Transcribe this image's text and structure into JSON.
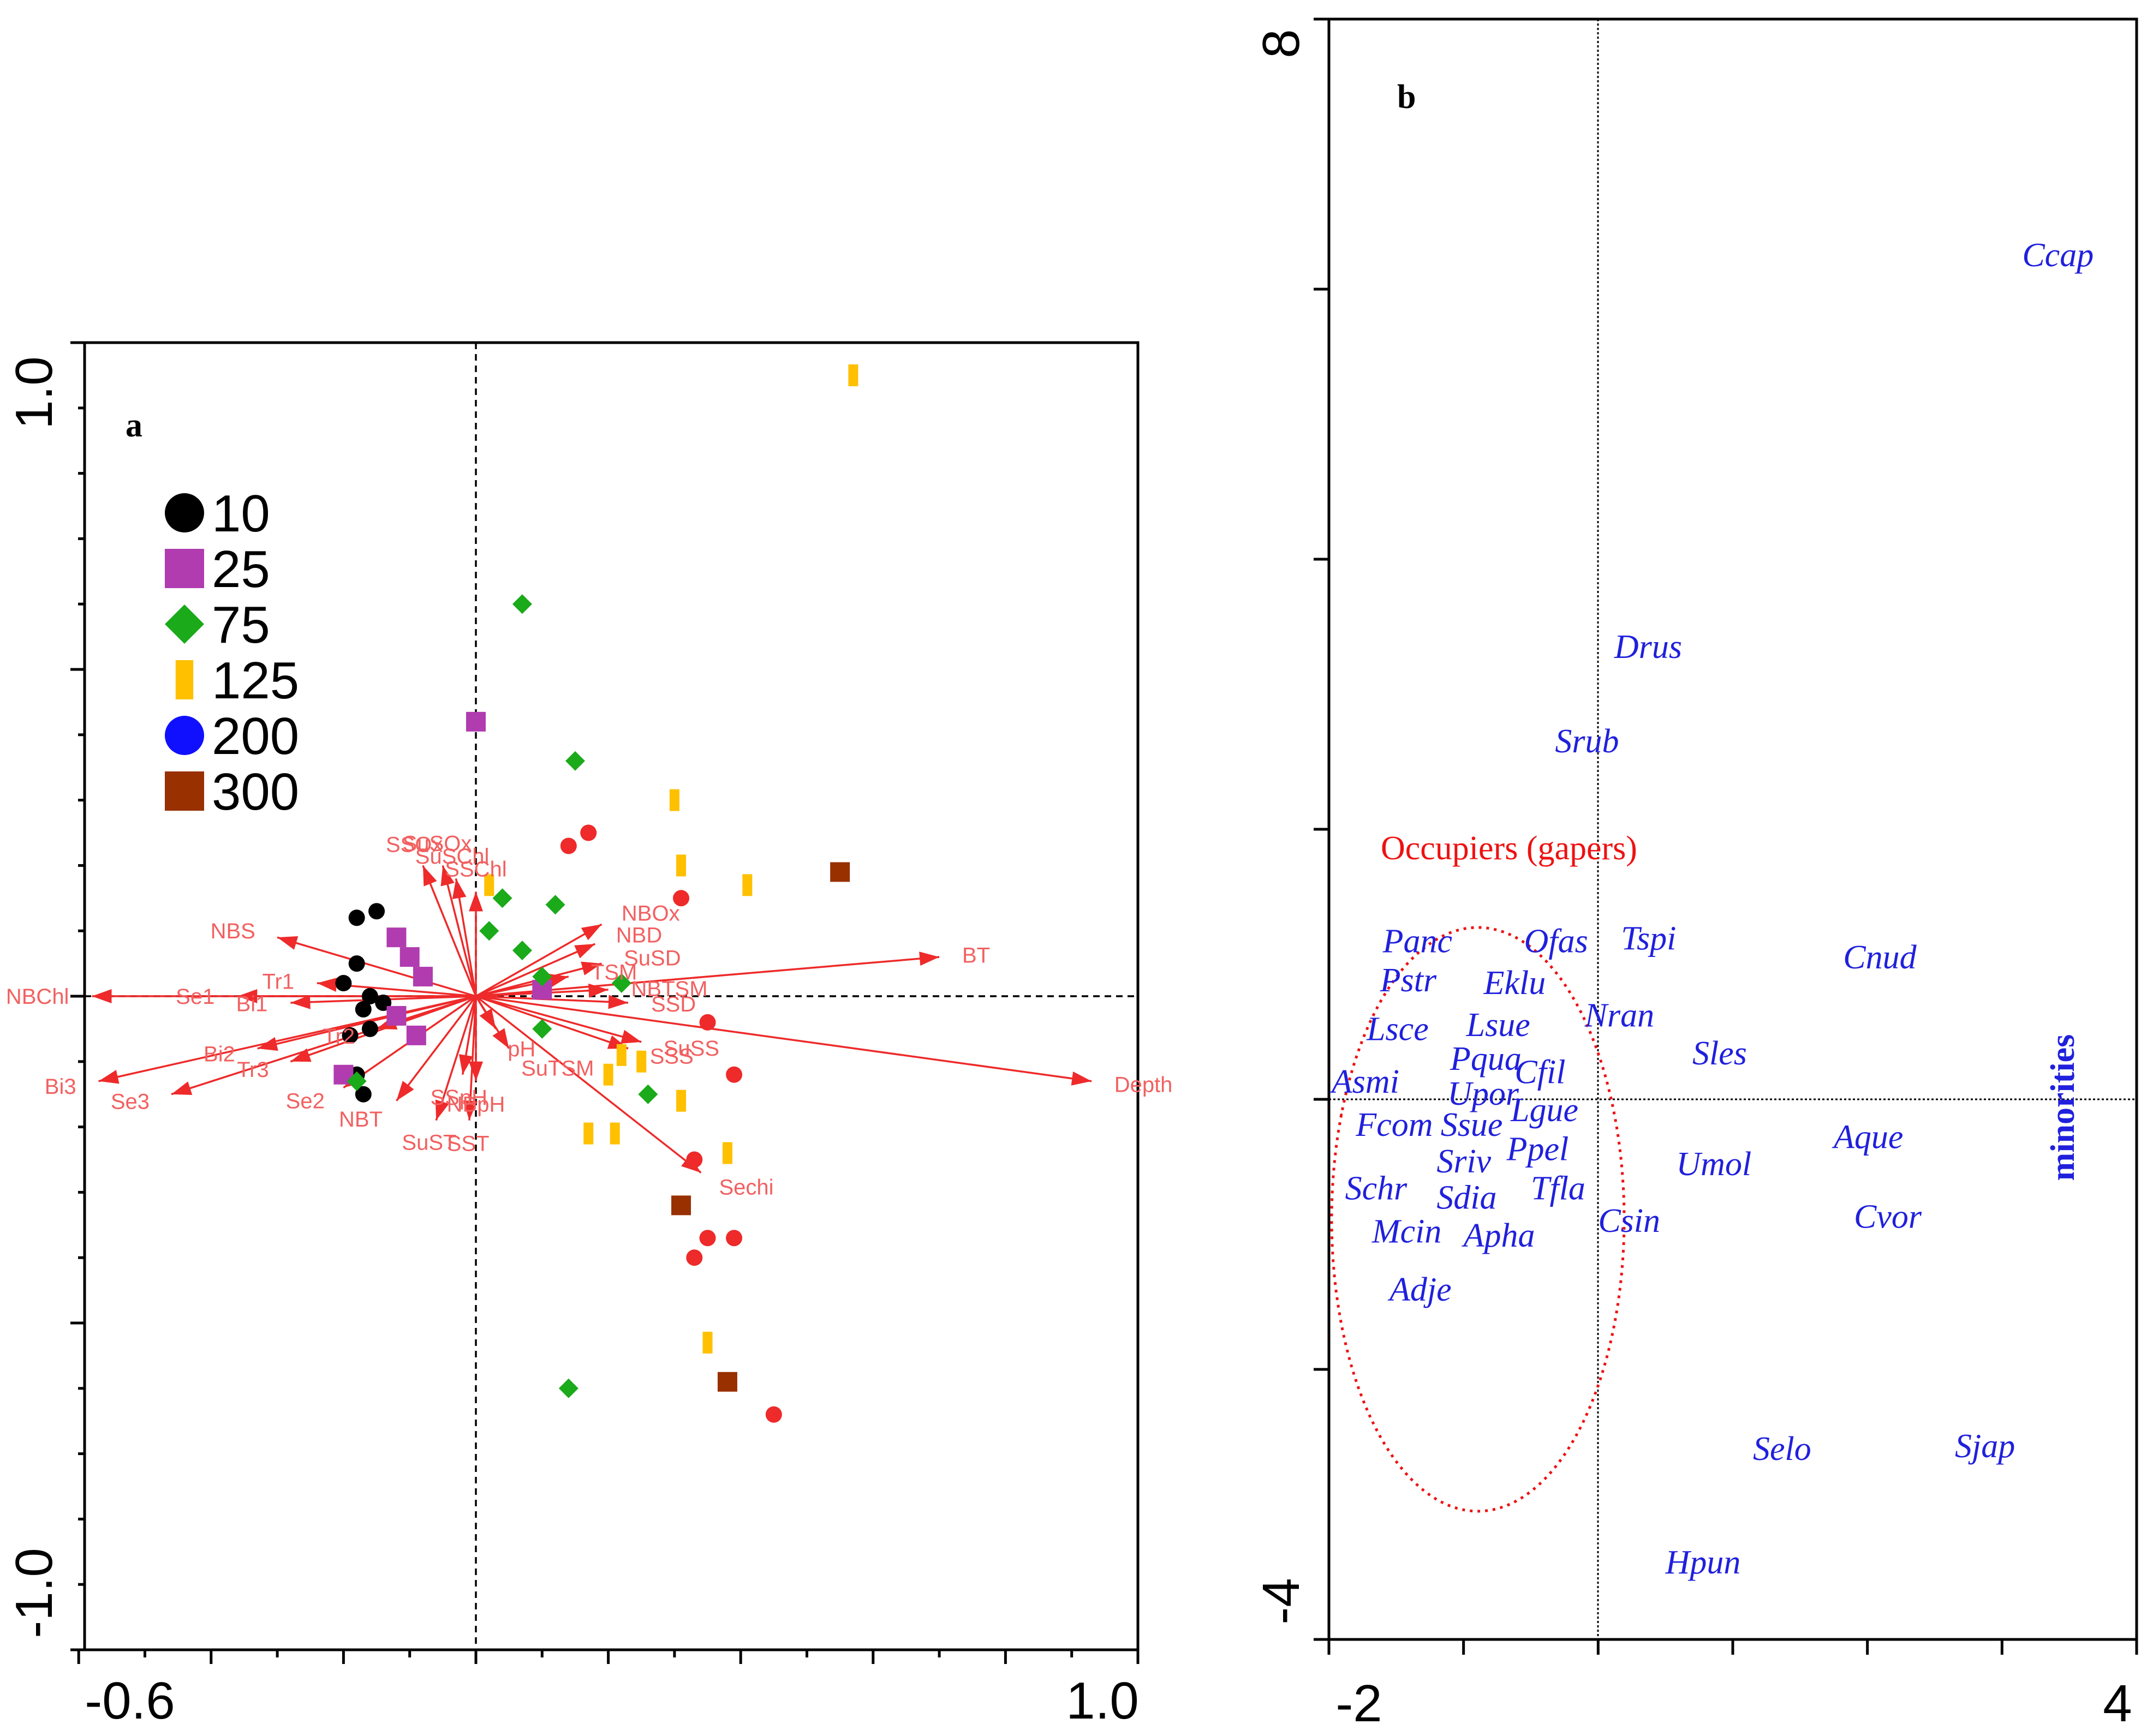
{
  "chart_data": [
    {
      "type": "scatter",
      "panel_label": "a",
      "xlim": [
        -0.6,
        1.0
      ],
      "ylim": [
        -1.0,
        1.0
      ],
      "x_tick_labels": [
        "-0.6",
        "1.0"
      ],
      "y_tick_labels": [
        "1.0",
        "-1.0"
      ],
      "legend": [
        {
          "label": "10",
          "color": "#000000",
          "shape": "circle"
        },
        {
          "label": "25",
          "color": "#b03cb0",
          "shape": "square"
        },
        {
          "label": "75",
          "color": "#1aaa1a",
          "shape": "diamond"
        },
        {
          "label": "125",
          "color": "#ffc000",
          "shape": "bar"
        },
        {
          "label": "200",
          "color": "#1010ff",
          "shape": "circle"
        },
        {
          "label": "300",
          "color": "#983000",
          "shape": "square"
        }
      ],
      "vector_color": "#ee2a2a",
      "vectors": [
        {
          "name": "BT",
          "x": 0.7,
          "y": 0.06
        },
        {
          "name": "Depth",
          "x": 0.93,
          "y": -0.13
        },
        {
          "name": "Sechi",
          "x": 0.34,
          "y": -0.27
        },
        {
          "name": "NBOx",
          "x": 0.19,
          "y": 0.11
        },
        {
          "name": "NBD",
          "x": 0.18,
          "y": 0.08
        },
        {
          "name": "SuSD",
          "x": 0.19,
          "y": 0.05
        },
        {
          "name": "NBTSM",
          "x": 0.2,
          "y": 0.01
        },
        {
          "name": "TSM",
          "x": 0.14,
          "y": 0.03
        },
        {
          "name": "SSD",
          "x": 0.23,
          "y": -0.01
        },
        {
          "name": "SuSS",
          "x": 0.25,
          "y": -0.07
        },
        {
          "name": "SSS",
          "x": 0.23,
          "y": -0.08
        },
        {
          "name": "SSChl",
          "x": 0.0,
          "y": 0.16
        },
        {
          "name": "SuSChl",
          "x": -0.03,
          "y": 0.18
        },
        {
          "name": "SuSOx",
          "x": -0.05,
          "y": 0.2
        },
        {
          "name": "SSOx",
          "x": -0.08,
          "y": 0.2
        },
        {
          "name": "NBS",
          "x": -0.3,
          "y": 0.09
        },
        {
          "name": "Tr1",
          "x": -0.24,
          "y": 0.02
        },
        {
          "name": "Se1",
          "x": -0.36,
          "y": 0.0
        },
        {
          "name": "NBChl",
          "x": -0.58,
          "y": 0.0
        },
        {
          "name": "Bi1",
          "x": -0.28,
          "y": -0.01
        },
        {
          "name": "Bi2",
          "x": -0.33,
          "y": -0.08
        },
        {
          "name": "Bi3",
          "x": -0.57,
          "y": -0.13
        },
        {
          "name": "Tr3",
          "x": -0.28,
          "y": -0.1
        },
        {
          "name": "Se3",
          "x": -0.46,
          "y": -0.15
        },
        {
          "name": "Se2",
          "x": -0.2,
          "y": -0.14
        },
        {
          "name": "Tr2",
          "x": -0.15,
          "y": -0.05
        },
        {
          "name": "NBT",
          "x": -0.12,
          "y": -0.16
        },
        {
          "name": "SuST",
          "x": -0.06,
          "y": -0.19
        },
        {
          "name": "SST",
          "x": -0.01,
          "y": -0.19
        },
        {
          "name": "SSpH",
          "x": -0.02,
          "y": -0.12
        },
        {
          "name": "NBpH",
          "x": 0.0,
          "y": -0.13
        },
        {
          "name": "SuTSM",
          "x": 0.05,
          "y": -0.08
        },
        {
          "name": "pH",
          "x": 0.03,
          "y": -0.05
        }
      ],
      "points": [
        {
          "group": "10",
          "x": -0.18,
          "y": 0.12
        },
        {
          "group": "10",
          "x": -0.15,
          "y": 0.13
        },
        {
          "group": "10",
          "x": -0.18,
          "y": 0.05
        },
        {
          "group": "10",
          "x": -0.2,
          "y": 0.02
        },
        {
          "group": "10",
          "x": -0.16,
          "y": 0.0
        },
        {
          "group": "10",
          "x": -0.14,
          "y": -0.01
        },
        {
          "group": "10",
          "x": -0.17,
          "y": -0.02
        },
        {
          "group": "10",
          "x": -0.19,
          "y": -0.06
        },
        {
          "group": "10",
          "x": -0.16,
          "y": -0.05
        },
        {
          "group": "10",
          "x": -0.18,
          "y": -0.12
        },
        {
          "group": "10",
          "x": -0.17,
          "y": -0.15
        },
        {
          "group": "25",
          "x": 0.0,
          "y": 0.42
        },
        {
          "group": "25",
          "x": -0.12,
          "y": 0.09
        },
        {
          "group": "25",
          "x": -0.1,
          "y": 0.06
        },
        {
          "group": "25",
          "x": -0.08,
          "y": 0.03
        },
        {
          "group": "25",
          "x": -0.12,
          "y": -0.03
        },
        {
          "group": "25",
          "x": -0.09,
          "y": -0.06
        },
        {
          "group": "25",
          "x": -0.2,
          "y": -0.12
        },
        {
          "group": "25",
          "x": 0.1,
          "y": 0.01
        },
        {
          "group": "75",
          "x": 0.07,
          "y": 0.6
        },
        {
          "group": "75",
          "x": 0.15,
          "y": 0.36
        },
        {
          "group": "75",
          "x": 0.04,
          "y": 0.15
        },
        {
          "group": "75",
          "x": 0.12,
          "y": 0.14
        },
        {
          "group": "75",
          "x": 0.02,
          "y": 0.1
        },
        {
          "group": "75",
          "x": 0.07,
          "y": 0.07
        },
        {
          "group": "75",
          "x": 0.1,
          "y": 0.03
        },
        {
          "group": "75",
          "x": 0.22,
          "y": 0.02
        },
        {
          "group": "75",
          "x": 0.1,
          "y": -0.05
        },
        {
          "group": "75",
          "x": -0.18,
          "y": -0.13
        },
        {
          "group": "75",
          "x": 0.26,
          "y": -0.15
        },
        {
          "group": "75",
          "x": 0.14,
          "y": -0.6
        },
        {
          "group": "125",
          "x": 0.57,
          "y": 0.95
        },
        {
          "group": "125",
          "x": 0.3,
          "y": 0.3
        },
        {
          "group": "125",
          "x": 0.31,
          "y": 0.2
        },
        {
          "group": "125",
          "x": 0.41,
          "y": 0.17
        },
        {
          "group": "125",
          "x": 0.02,
          "y": 0.17
        },
        {
          "group": "125",
          "x": 0.22,
          "y": -0.09
        },
        {
          "group": "125",
          "x": 0.25,
          "y": -0.1
        },
        {
          "group": "125",
          "x": 0.2,
          "y": -0.12
        },
        {
          "group": "125",
          "x": 0.31,
          "y": -0.16
        },
        {
          "group": "125",
          "x": 0.17,
          "y": -0.21
        },
        {
          "group": "125",
          "x": 0.21,
          "y": -0.21
        },
        {
          "group": "125",
          "x": 0.38,
          "y": -0.24
        },
        {
          "group": "125",
          "x": 0.35,
          "y": -0.53
        },
        {
          "group": "300",
          "x": 0.55,
          "y": 0.19
        },
        {
          "group": "300",
          "x": 0.31,
          "y": -0.32
        },
        {
          "group": "300",
          "x": 0.38,
          "y": -0.59
        },
        {
          "group": "other",
          "x": 0.17,
          "y": 0.25
        },
        {
          "group": "other",
          "x": 0.14,
          "y": 0.23
        },
        {
          "group": "other",
          "x": 0.31,
          "y": 0.15
        },
        {
          "group": "other",
          "x": 0.35,
          "y": -0.04
        },
        {
          "group": "other",
          "x": 0.39,
          "y": -0.12
        },
        {
          "group": "other",
          "x": 0.33,
          "y": -0.25
        },
        {
          "group": "other",
          "x": 0.35,
          "y": -0.37
        },
        {
          "group": "other",
          "x": 0.39,
          "y": -0.37
        },
        {
          "group": "other",
          "x": 0.33,
          "y": -0.4
        },
        {
          "group": "other",
          "x": 0.45,
          "y": -0.64
        }
      ]
    },
    {
      "type": "scatter",
      "panel_label": "b",
      "xlim": [
        -2,
        4
      ],
      "ylim": [
        -4,
        8
      ],
      "x_tick_labels": [
        "-2",
        "4"
      ],
      "y_tick_labels": [
        "8",
        "-4"
      ],
      "species": [
        {
          "name": "Ccap",
          "x": 3.15,
          "y": 6.25
        },
        {
          "name": "Drus",
          "x": 0.12,
          "y": 3.35
        },
        {
          "name": "Srub",
          "x": -0.32,
          "y": 2.65
        },
        {
          "name": "Panc",
          "x": -1.6,
          "y": 1.17
        },
        {
          "name": "Ofas",
          "x": -0.55,
          "y": 1.17
        },
        {
          "name": "Tspi",
          "x": 0.17,
          "y": 1.19
        },
        {
          "name": "Cnud",
          "x": 1.82,
          "y": 1.05
        },
        {
          "name": "Pstr",
          "x": -1.62,
          "y": 0.88
        },
        {
          "name": "Eklu",
          "x": -0.85,
          "y": 0.86
        },
        {
          "name": "Nran",
          "x": -0.1,
          "y": 0.62
        },
        {
          "name": "Lsce",
          "x": -1.72,
          "y": 0.52
        },
        {
          "name": "Lsue",
          "x": -0.98,
          "y": 0.55
        },
        {
          "name": "Sles",
          "x": 0.7,
          "y": 0.34
        },
        {
          "name": "Pqua",
          "x": -1.1,
          "y": 0.3
        },
        {
          "name": "Cfil",
          "x": -0.62,
          "y": 0.2
        },
        {
          "name": "Asmi",
          "x": -1.98,
          "y": 0.13
        },
        {
          "name": "Upor",
          "x": -1.12,
          "y": 0.04
        },
        {
          "name": "Lgue",
          "x": -0.65,
          "y": -0.08
        },
        {
          "name": "Fcom",
          "x": -1.8,
          "y": -0.19
        },
        {
          "name": "Ssue",
          "x": -1.17,
          "y": -0.19
        },
        {
          "name": "Aque",
          "x": 1.75,
          "y": -0.28
        },
        {
          "name": "Sriv",
          "x": -1.2,
          "y": -0.46
        },
        {
          "name": "Ppel",
          "x": -0.68,
          "y": -0.37
        },
        {
          "name": "Umol",
          "x": 0.58,
          "y": -0.48
        },
        {
          "name": "Schr",
          "x": -1.88,
          "y": -0.66
        },
        {
          "name": "Sdia",
          "x": -1.2,
          "y": -0.73
        },
        {
          "name": "Tfla",
          "x": -0.5,
          "y": -0.66
        },
        {
          "name": "Cvor",
          "x": 1.9,
          "y": -0.87
        },
        {
          "name": "Csin",
          "x": 0.0,
          "y": -0.9
        },
        {
          "name": "Mcin",
          "x": -1.68,
          "y": -0.98
        },
        {
          "name": "Apha",
          "x": -1.0,
          "y": -1.01
        },
        {
          "name": "Adje",
          "x": -1.55,
          "y": -1.41
        },
        {
          "name": "Selo",
          "x": 1.15,
          "y": -2.59
        },
        {
          "name": "Sjap",
          "x": 2.65,
          "y": -2.57
        },
        {
          "name": "Hpun",
          "x": 0.5,
          "y": -3.43
        }
      ],
      "group_label": "Occupiers (gapers)",
      "side_label": "minorities"
    }
  ]
}
